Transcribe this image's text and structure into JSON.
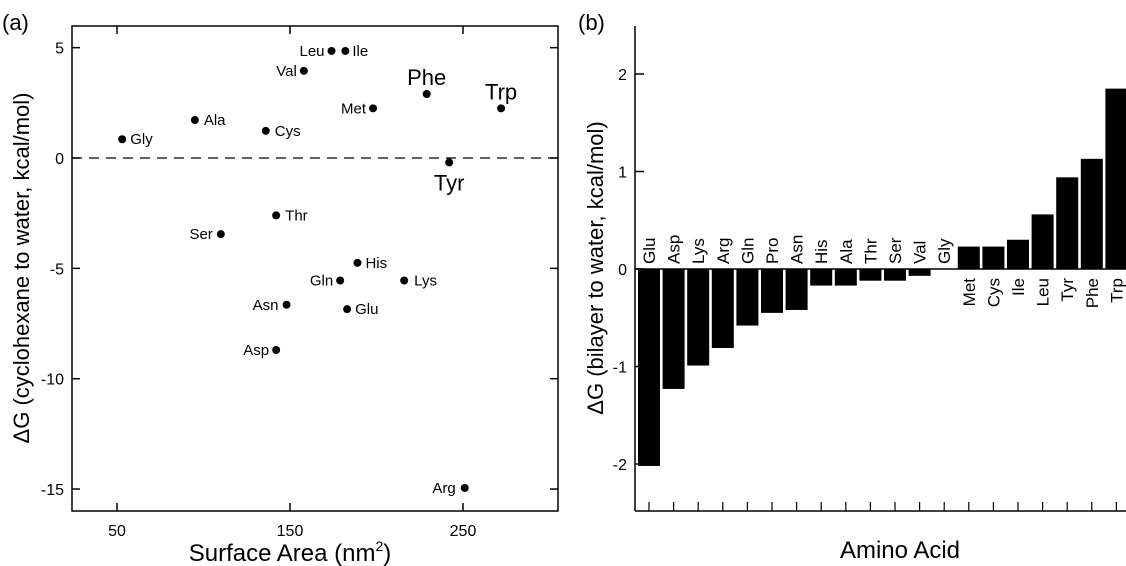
{
  "chart_data": [
    {
      "panel_label": "(a)",
      "type": "scatter",
      "xlabel": "Surface Area (nm",
      "xlabel_sup": "2",
      "xlabel_close": ")",
      "ylabel": "ΔG (cyclohexane to water, kcal/mol)",
      "xlim": [
        20,
        300
      ],
      "ylim": [
        -16,
        6
      ],
      "xticks": [
        50,
        150,
        250
      ],
      "yticks": [
        5,
        0,
        -5,
        -10,
        -15
      ],
      "reference_line": 0,
      "points": [
        {
          "label": "Gly",
          "x": 53,
          "y": 0.85
        },
        {
          "label": "Ala",
          "x": 95,
          "y": 1.72
        },
        {
          "label": "Cys",
          "x": 136,
          "y": 1.23
        },
        {
          "label": "Ser",
          "x": 110,
          "y": -3.45
        },
        {
          "label": "Thr",
          "x": 142,
          "y": -2.6
        },
        {
          "label": "Val",
          "x": 158,
          "y": 3.95
        },
        {
          "label": "Leu",
          "x": 174,
          "y": 4.85
        },
        {
          "label": "Ile",
          "x": 182,
          "y": 4.85
        },
        {
          "label": "Met",
          "x": 198,
          "y": 2.25
        },
        {
          "label": "Phe",
          "x": 229,
          "y": 2.9
        },
        {
          "label": "Trp",
          "x": 272,
          "y": 2.25
        },
        {
          "label": "Tyr",
          "x": 242,
          "y": -0.2
        },
        {
          "label": "His",
          "x": 189,
          "y": -4.75
        },
        {
          "label": "Gln",
          "x": 179,
          "y": -5.55
        },
        {
          "label": "Lys",
          "x": 216,
          "y": -5.55
        },
        {
          "label": "Asn",
          "x": 148,
          "y": -6.65
        },
        {
          "label": "Glu",
          "x": 183,
          "y": -6.85
        },
        {
          "label": "Asp",
          "x": 142,
          "y": -8.7
        },
        {
          "label": "Arg",
          "x": 251,
          "y": -14.95
        }
      ]
    },
    {
      "panel_label": "(b)",
      "type": "bar",
      "xlabel": "Amino Acid",
      "ylabel": "ΔG (bilayer to water, kcal/mol)",
      "ylim": [
        -2.5,
        2.5
      ],
      "yticks": [
        2,
        1,
        0,
        -1,
        -2
      ],
      "categories": [
        "Glu",
        "Asp",
        "Lys",
        "Arg",
        "Gln",
        "Pro",
        "Asn",
        "His",
        "Ala",
        "Thr",
        "Ser",
        "Val",
        "Gly",
        "Met",
        "Cys",
        "Ile",
        "Leu",
        "Tyr",
        "Phe",
        "Trp"
      ],
      "values": [
        -2.02,
        -1.23,
        -0.99,
        -0.81,
        -0.58,
        -0.45,
        -0.42,
        -0.17,
        -0.17,
        -0.12,
        -0.12,
        -0.07,
        0.0,
        0.23,
        0.23,
        0.3,
        0.56,
        0.94,
        1.13,
        1.85
      ]
    }
  ]
}
